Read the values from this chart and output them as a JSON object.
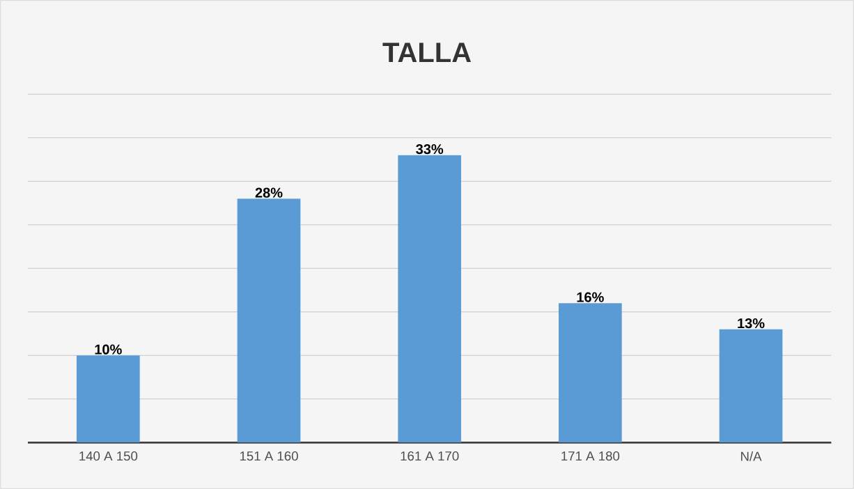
{
  "chart_data": {
    "type": "bar",
    "title": "TALLA",
    "categories": [
      "140 A 150",
      "151 A 160",
      "161 A 170",
      "171 A 180",
      "N/A"
    ],
    "values": [
      10,
      28,
      33,
      16,
      13
    ],
    "value_labels": [
      "10%",
      "28%",
      "33%",
      "16%",
      "13%"
    ],
    "color": "#5b9bd5",
    "ylim": [
      0,
      40
    ],
    "yticks": [
      {
        "value": 0,
        "label": null
      },
      {
        "value": 5,
        "label": null
      },
      {
        "value": 10,
        "label": null
      },
      {
        "value": 15,
        "label": null
      },
      {
        "value": 20,
        "label": null
      },
      {
        "value": 25,
        "label": null
      },
      {
        "value": 30,
        "label": null
      },
      {
        "value": 35,
        "label": null
      },
      {
        "value": 40,
        "label": null
      }
    ],
    "grid": "y",
    "tick_labels": "x"
  }
}
